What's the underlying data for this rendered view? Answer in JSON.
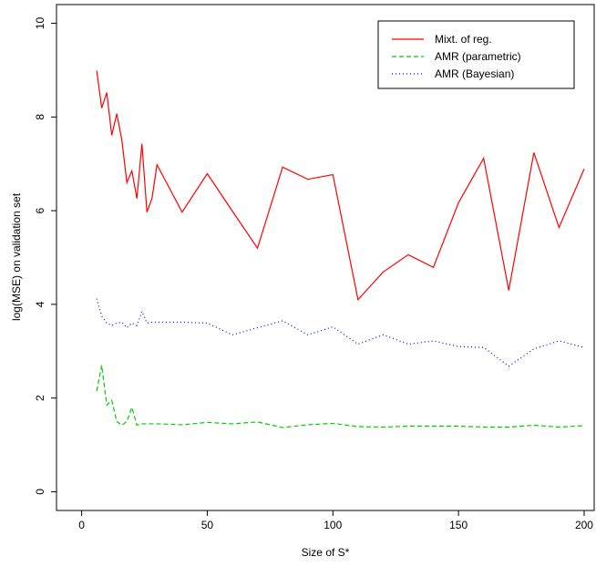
{
  "chart_data": {
    "type": "line",
    "x_label": "Size of S*",
    "y_label": "log(MSE) on validation set",
    "x": [
      6,
      8,
      10,
      12,
      14,
      16,
      18,
      20,
      22,
      24,
      26,
      28,
      30,
      40,
      50,
      60,
      70,
      80,
      90,
      100,
      110,
      120,
      130,
      140,
      150,
      160,
      170,
      180,
      190,
      200
    ],
    "series": [
      {
        "name": "Mixt. of reg.",
        "color": "#ff0000",
        "dash": "solid",
        "values": [
          8.99,
          8.19,
          8.52,
          7.61,
          8.07,
          7.51,
          6.6,
          6.85,
          6.26,
          7.43,
          5.97,
          6.26,
          6.98,
          5.97,
          6.79,
          5.99,
          5.2,
          6.93,
          6.67,
          6.77,
          4.1,
          4.69,
          5.06,
          4.79,
          6.17,
          7.12,
          4.3,
          7.24,
          5.64,
          6.89
        ]
      },
      {
        "name": "AMR (parametric)",
        "color": "#00cd00",
        "dash": "dashed",
        "values": [
          2.15,
          2.7,
          1.85,
          1.95,
          1.5,
          1.42,
          1.5,
          1.8,
          1.42,
          1.45,
          1.45,
          1.45,
          1.45,
          1.43,
          1.48,
          1.45,
          1.49,
          1.37,
          1.43,
          1.46,
          1.39,
          1.38,
          1.4,
          1.4,
          1.4,
          1.38,
          1.38,
          1.42,
          1.38,
          1.41
        ]
      },
      {
        "name": "AMR (Bayesian)",
        "color": "#0000ff",
        "dash": "dotted",
        "values": [
          4.12,
          3.75,
          3.6,
          3.55,
          3.6,
          3.62,
          3.5,
          3.6,
          3.55,
          3.85,
          3.6,
          3.62,
          3.62,
          3.62,
          3.6,
          3.35,
          3.5,
          3.65,
          3.35,
          3.52,
          3.15,
          3.35,
          3.15,
          3.22,
          3.1,
          3.08,
          2.68,
          3.05,
          3.22,
          3.08
        ]
      }
    ],
    "xlim": [
      -10,
      204
    ],
    "ylim": [
      -0.4,
      10.4
    ],
    "xticks": [
      0,
      50,
      100,
      150,
      200
    ],
    "yticks": [
      0,
      2,
      4,
      6,
      8,
      10
    ],
    "legend": "top-right"
  }
}
